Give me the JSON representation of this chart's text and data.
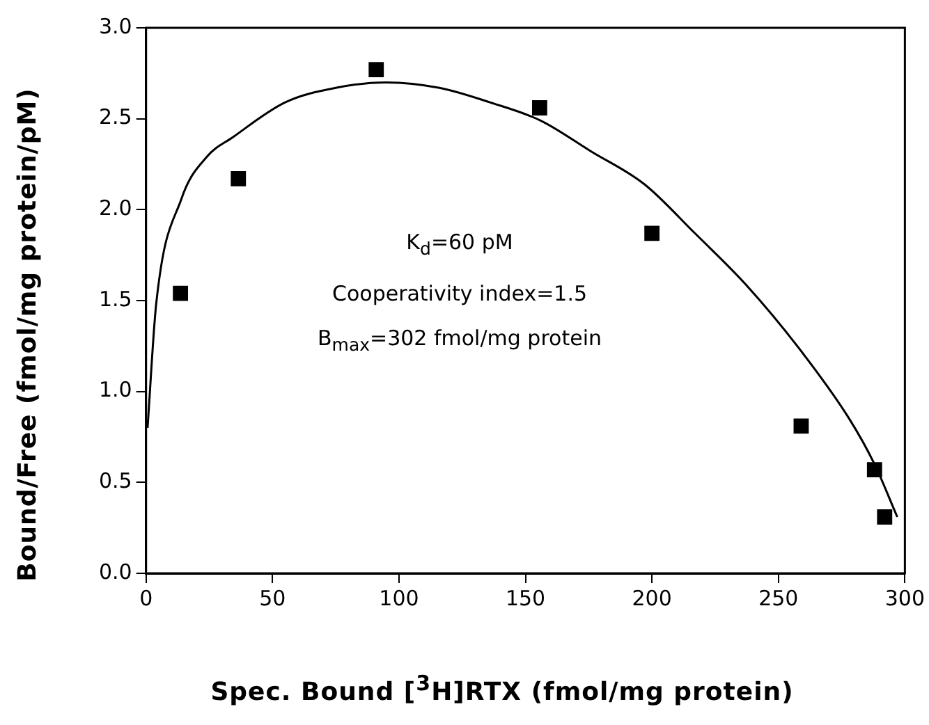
{
  "chart_data": {
    "type": "scatter",
    "xlabel": "Spec. Bound [$^{3}$H]RTX (fmol/mg protein)",
    "ylabel": "Bound/Free (fmol/mg protein/pM)",
    "xlim": [
      0,
      300
    ],
    "xticks": [
      0,
      50,
      100,
      150,
      200,
      250,
      300
    ],
    "ylim": [
      0,
      3.0
    ],
    "yticks": [
      {
        "value": 0,
        "label": "0.0"
      },
      {
        "value": 0.5,
        "label": "0.5"
      },
      {
        "value": 1,
        "label": "1.0"
      },
      {
        "value": 1.5,
        "label": "1.5"
      },
      {
        "value": 2,
        "label": "2.0"
      },
      {
        "value": 2.5,
        "label": "2.5"
      },
      {
        "value": 3,
        "label": "3.0"
      }
    ],
    "grid": false,
    "legend": false,
    "series": [
      {
        "marker": "square",
        "color": "#000000",
        "x": [
          13.6,
          36.5,
          91,
          155.6,
          200,
          259,
          288,
          292
        ],
        "values": [
          1.54,
          2.17,
          2.77,
          2.56,
          1.87,
          0.81,
          0.57,
          0.31
        ]
      },
      {
        "type": "line",
        "marker": "none",
        "line_style": "solid",
        "color": "#000000",
        "x": [
          0.6,
          4,
          14,
          24,
          34.5,
          55,
          75,
          95,
          116,
          136,
          156,
          176,
          197,
          217,
          237,
          258,
          278,
          288,
          297
        ],
        "values": [
          0.8,
          1.48,
          2.06,
          2.29,
          2.4,
          2.59,
          2.67,
          2.7,
          2.67,
          2.59,
          2.49,
          2.32,
          2.14,
          1.87,
          1.59,
          1.24,
          0.85,
          0.6,
          0.31
        ]
      }
    ],
    "annotations": [
      "K$_{d}$=60 pM",
      "Cooperativity index=1.5",
      "B$_{max}$=302 fmol/mg protein"
    ]
  }
}
